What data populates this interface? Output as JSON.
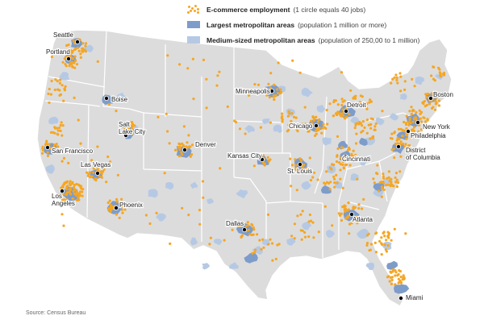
{
  "legend": {
    "ecommerce": {
      "title": "E-commerce employment",
      "desc": "(1 circle equals 40 jobs)"
    },
    "largest": {
      "title": "Largest metropolitan areas",
      "desc": "(population 1 million or more)"
    },
    "medium": {
      "title": "Medium-sized metropolitan areas",
      "desc": "(population of 250,00 to 1 million)"
    }
  },
  "colors": {
    "land": "#dcdcdc",
    "border": "#ffffff",
    "dot": "#f5a623",
    "largest_metro": "#7d9cc9",
    "medium_metro": "#b6c9e4",
    "city_dot": "#000000"
  },
  "cities": [
    {
      "name": "Seattle"
    },
    {
      "name": "Portland"
    },
    {
      "name": "Boise"
    },
    {
      "name": "San Francisco"
    },
    {
      "name": "Las Vegas"
    },
    {
      "name": "Los Angeles"
    },
    {
      "name": "Phoenix"
    },
    {
      "name": "Salt Lake City"
    },
    {
      "name": "Denver"
    },
    {
      "name": "Minneapolis"
    },
    {
      "name": "Kansas City"
    },
    {
      "name": "St. Louis"
    },
    {
      "name": "Dallas"
    },
    {
      "name": "Chicago"
    },
    {
      "name": "Detroit"
    },
    {
      "name": "Cincinnati"
    },
    {
      "name": "Atlanta"
    },
    {
      "name": "Miami"
    },
    {
      "name": "Boston"
    },
    {
      "name": "New York"
    },
    {
      "name": "Philadelphia"
    },
    {
      "name": "District of Columbia"
    }
  ],
  "source": "Source: Census Bureau"
}
